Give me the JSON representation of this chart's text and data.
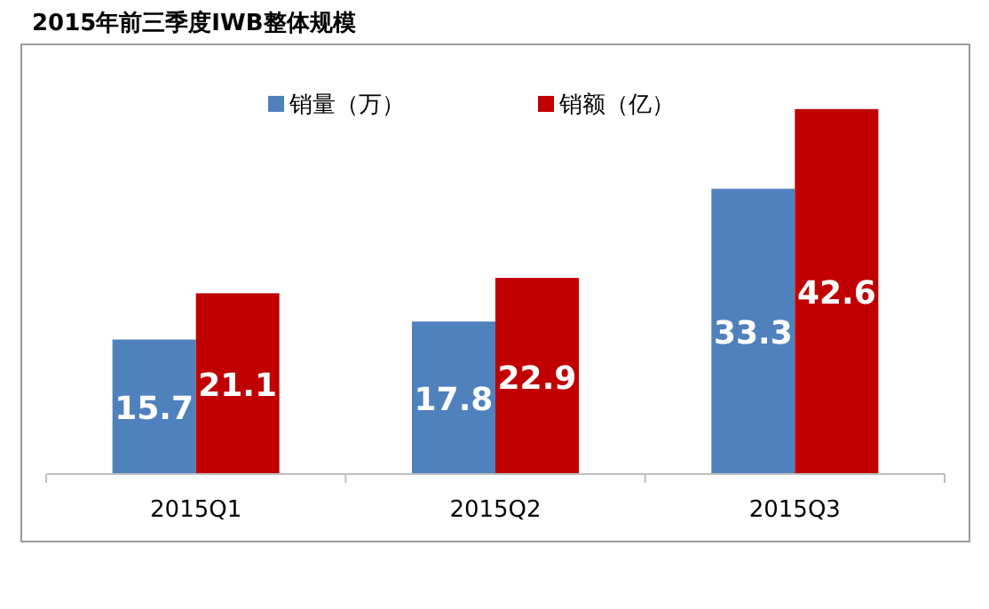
{
  "chart_data": {
    "type": "bar",
    "title": "2015年前三季度IWB整体规模",
    "categories": [
      "2015Q1",
      "2015Q2",
      "2015Q3"
    ],
    "series": [
      {
        "name": "销量（万）",
        "color": "#4f81bd",
        "values": [
          15.7,
          17.8,
          33.3
        ]
      },
      {
        "name": "销额（亿）",
        "color": "#c00000",
        "values": [
          21.1,
          22.9,
          42.6
        ]
      }
    ],
    "data_labels": true,
    "legend": "top"
  }
}
